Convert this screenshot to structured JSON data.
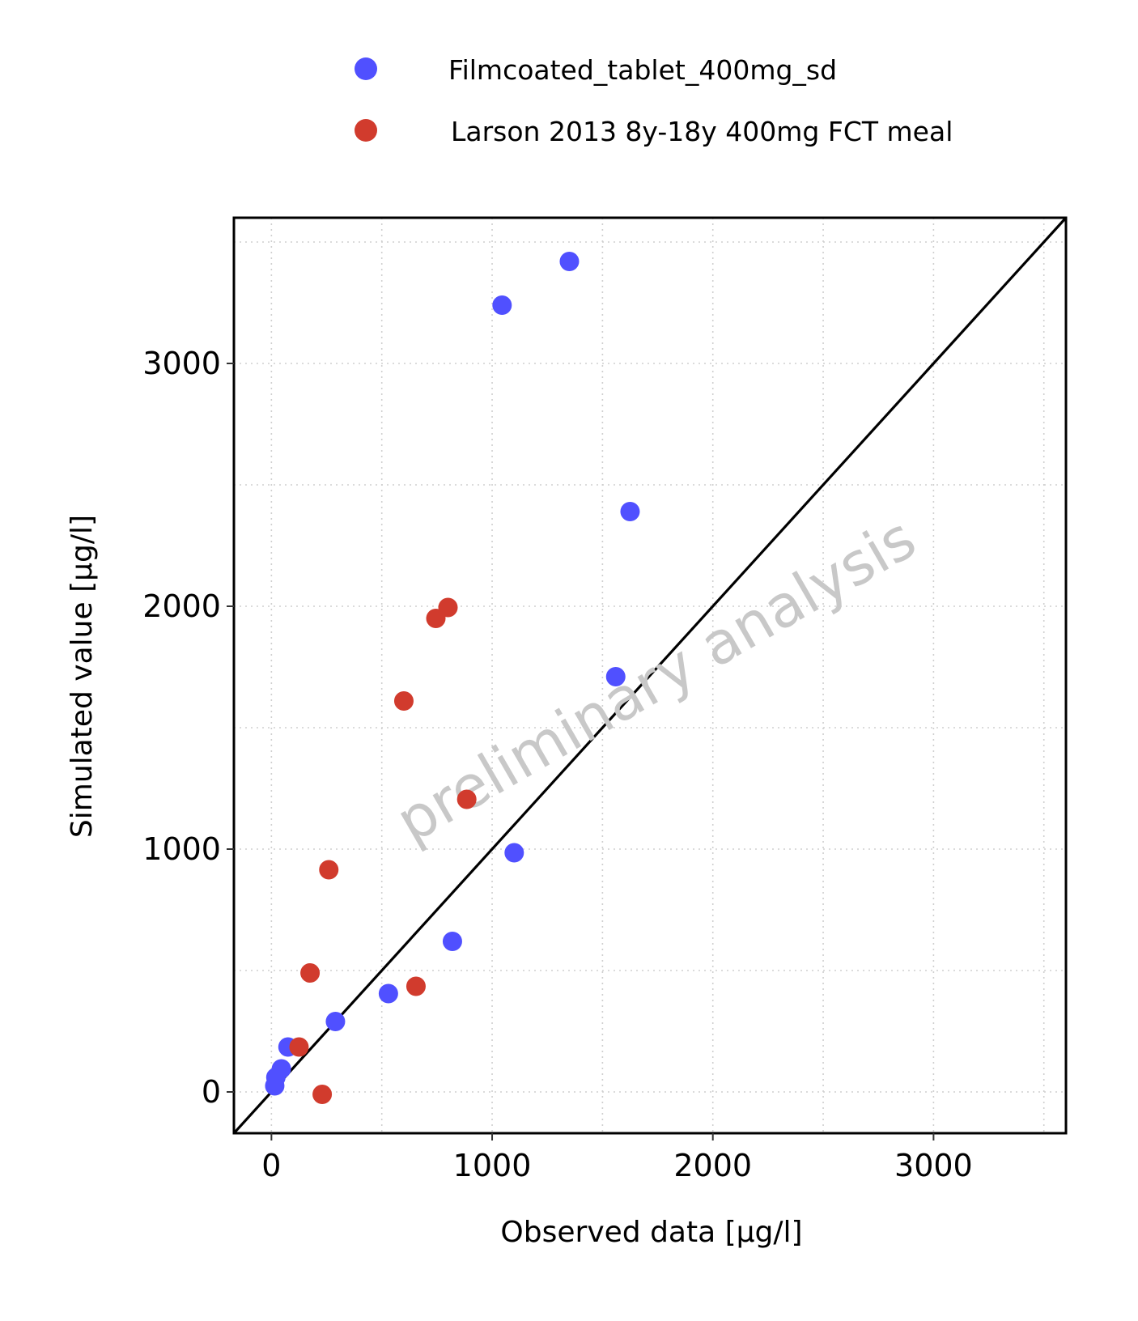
{
  "chart_data": {
    "type": "scatter",
    "xlabel": "Observed data [µg/l]",
    "ylabel": "Simulated value [µg/l]",
    "xlim": [
      -170,
      3600
    ],
    "ylim": [
      -170,
      3600
    ],
    "x_ticks": [
      0,
      1000,
      2000,
      3000
    ],
    "y_ticks": [
      0,
      1000,
      2000,
      3000
    ],
    "x_tick_labels": [
      "0",
      "1000",
      "2000",
      "3000"
    ],
    "y_tick_labels": [
      "0",
      "1000",
      "2000",
      "3000"
    ],
    "grid": "dotted major and minor",
    "legend_position": "top",
    "identity_line": true,
    "watermark": "preliminary analysis",
    "series": [
      {
        "name": "Filmcoated_tablet_400mg_sd",
        "color": "#5050ff",
        "points": [
          [
            1350,
            3420
          ],
          [
            1045,
            3240
          ],
          [
            1625,
            2390
          ],
          [
            1560,
            1710
          ],
          [
            1100,
            985
          ],
          [
            820,
            620
          ],
          [
            530,
            405
          ],
          [
            290,
            290
          ],
          [
            75,
            185
          ],
          [
            45,
            95
          ],
          [
            20,
            60
          ],
          [
            15,
            25
          ]
        ]
      },
      {
        "name": "Larson 2013 8y-18y 400mg FCT meal",
        "color": "#d13b2d",
        "points": [
          [
            800,
            1995
          ],
          [
            745,
            1950
          ],
          [
            600,
            1610
          ],
          [
            885,
            1205
          ],
          [
            260,
            915
          ],
          [
            175,
            490
          ],
          [
            655,
            435
          ],
          [
            125,
            185
          ],
          [
            230,
            -10
          ]
        ]
      }
    ]
  }
}
